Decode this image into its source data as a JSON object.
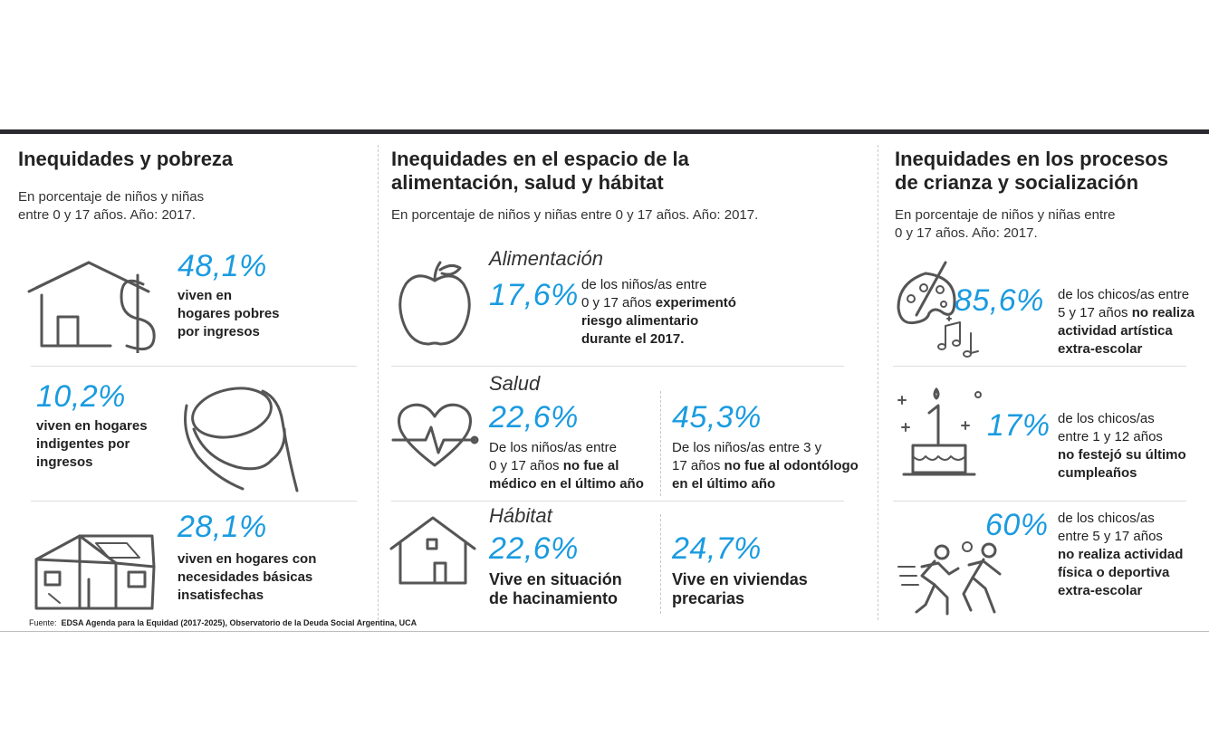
{
  "columns": {
    "pobreza": {
      "title": "Inequidades y pobreza",
      "subtitle_1": "En porcentaje de niños y niñas",
      "subtitle_2": "entre 0 y 17 años. Año: 2017.",
      "items": [
        {
          "value": "48,1%",
          "line1": "viven en",
          "line2": "hogares pobres",
          "line3": "por ingresos"
        },
        {
          "value": "10,2%",
          "line1": "viven en hogares",
          "line2": "indigentes por",
          "line3": "ingresos"
        },
        {
          "value": "28,1%",
          "line1": "viven en hogares con",
          "line2": "necesidades básicas",
          "line3": "insatisfechas"
        }
      ]
    },
    "salud": {
      "title_1": "Inequidades en el espacio de la",
      "title_2": "alimentación, salud y hábitat",
      "subtitle": "En porcentaje de niños y niñas entre 0 y 17 años. Año: 2017.",
      "alimentacion": {
        "label": "Alimentación",
        "value": "17,6%",
        "line1": "de los niños/as entre",
        "line2a": "0 y 17 años ",
        "line2b": "experimentó",
        "line3": "riesgo alimentario",
        "line4": "durante el 2017."
      },
      "salud": {
        "label": "Salud",
        "left": {
          "value": "22,6%",
          "line1": "De los niños/as entre",
          "line2a": "0 y 17 años ",
          "line2b": "no fue al",
          "line3": "médico en el último año"
        },
        "right": {
          "value": "45,3%",
          "line1": "De los niños/as entre 3 y",
          "line2a": "17 años ",
          "line2b": "no fue al odontólogo",
          "line3": "en el último año"
        }
      },
      "habitat": {
        "label": "Hábitat",
        "left": {
          "value": "22,6%",
          "line1": "Vive en situación",
          "line2": "de hacinamiento"
        },
        "right": {
          "value": "24,7%",
          "line1": "Vive en viviendas",
          "line2": "precarias"
        }
      }
    },
    "crianza": {
      "title_1": "Inequidades en los procesos",
      "title_2": "de crianza y socialización",
      "subtitle_1": "En porcentaje de niños y niñas entre",
      "subtitle_2": "0 y 17 años. Año: 2017.",
      "items": [
        {
          "value": "85,6%",
          "line1": "de los chicos/as entre",
          "line2a": "5 y 17 años ",
          "line2b": "no realiza",
          "line3": "actividad artística",
          "line4": "extra-escolar"
        },
        {
          "value": "17%",
          "line1": "de los chicos/as",
          "line2": "entre 1 y 12 años",
          "line3": "no festejó su último",
          "line4": "cumpleaños"
        },
        {
          "value": "60%",
          "line1": "de los chicos/as",
          "line2": "entre 5 y 17 años",
          "line3": "no realiza actividad",
          "line4": "física o deportiva",
          "line5": "extra-escolar"
        }
      ]
    }
  },
  "source": {
    "label": "Fuente:",
    "text": "EDSA Agenda para la Equidad (2017-2025), Observatorio de la Deuda Social Argentina, UCA"
  },
  "colors": {
    "accent": "#1a9be0",
    "text": "#222222",
    "icon": "#555555",
    "rule": "#2a2a30"
  }
}
